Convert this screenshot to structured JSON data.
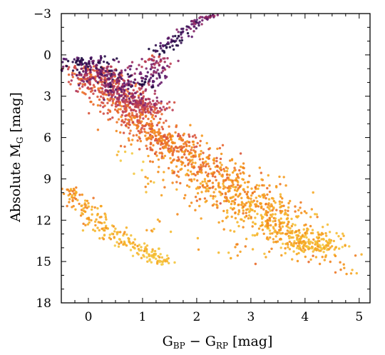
{
  "chart_data": {
    "type": "scatter",
    "title": "",
    "xlabel": {
      "main": "G",
      "sub1": "BP",
      "mid": " − G",
      "sub2": "RP",
      "unit": " [mag]"
    },
    "ylabel": {
      "main": "Absolute M",
      "sub": "G",
      "unit": " [mag]"
    },
    "xlim": [
      -0.5,
      5.2
    ],
    "ylim": [
      18,
      -3
    ],
    "y_inverted": true,
    "grid": false,
    "legend": "none",
    "xticks": [
      0,
      1,
      2,
      3,
      4,
      5
    ],
    "xticklabels": [
      "0",
      "1",
      "2",
      "3",
      "4",
      "5"
    ],
    "yticks": [
      -3,
      0,
      3,
      6,
      9,
      12,
      15,
      18
    ],
    "yticklabels": [
      "−3",
      "0",
      "3",
      "6",
      "9",
      "12",
      "15",
      "18"
    ],
    "x_minor_step": 0.25,
    "y_minor_step": 1,
    "colormap": [
      "#1a0b3d",
      "#5b1a6e",
      "#8e2867",
      "#c33f52",
      "#e8642d",
      "#f5911a",
      "#f6b42a",
      "#f3cb45"
    ],
    "series": [
      {
        "kind": "main_sequence",
        "color_range": [
          0.45,
          0.88
        ],
        "points": [
          [
            -0.05,
            0.8
          ],
          [
            0.2,
            1.8
          ],
          [
            0.5,
            3.0
          ],
          [
            0.8,
            4.5
          ],
          [
            1.2,
            5.8
          ],
          [
            1.6,
            6.7
          ],
          [
            2.0,
            7.8
          ],
          [
            2.4,
            9.0
          ],
          [
            2.8,
            10.2
          ],
          [
            3.2,
            11.4
          ],
          [
            3.6,
            12.6
          ],
          [
            4.0,
            13.6
          ],
          [
            4.3,
            14.2
          ]
        ],
        "width": [
          0.7,
          0.9,
          0.9,
          0.8,
          0.8,
          0.9,
          1.1,
          1.3,
          1.4,
          1.3,
          1.1,
          0.9,
          0.8
        ]
      },
      {
        "kind": "turnoff_subgiants",
        "color_range": [
          0.05,
          0.45
        ],
        "points": [
          [
            -0.15,
            0.2
          ],
          [
            0.1,
            0.9
          ],
          [
            0.4,
            1.8
          ],
          [
            0.7,
            2.8
          ],
          [
            1.0,
            3.6
          ],
          [
            1.2,
            4.2
          ]
        ],
        "width": [
          0.7,
          0.8,
          0.8,
          0.7,
          0.6,
          0.5
        ]
      },
      {
        "kind": "red_clump",
        "color_range": [
          0.0,
          0.5
        ],
        "points": [
          [
            1.0,
            2.4
          ],
          [
            1.1,
            1.5
          ],
          [
            1.2,
            0.6
          ],
          [
            1.3,
            0.0
          ]
        ],
        "width": [
          0.5,
          0.5,
          0.5,
          0.4
        ]
      },
      {
        "kind": "giant_branch",
        "color_range": [
          0.0,
          0.3
        ],
        "points": [
          [
            1.3,
            -0.1
          ],
          [
            1.6,
            -1.2
          ],
          [
            1.9,
            -2.0
          ],
          [
            2.1,
            -2.6
          ],
          [
            2.3,
            -2.9
          ]
        ],
        "width": [
          0.3,
          0.3,
          0.3,
          0.2,
          0.2
        ]
      },
      {
        "kind": "white_dwarfs",
        "color_range": [
          0.72,
          0.95
        ],
        "points": [
          [
            -0.4,
            9.6
          ],
          [
            -0.1,
            11.0
          ],
          [
            0.3,
            12.5
          ],
          [
            0.7,
            13.6
          ],
          [
            1.1,
            14.5
          ],
          [
            1.5,
            15.2
          ]
        ],
        "width": [
          0.3,
          0.4,
          0.45,
          0.45,
          0.4,
          0.35
        ]
      },
      {
        "kind": "field_scatter",
        "color_range": [
          0.6,
          0.95
        ],
        "points": [
          [
            1.5,
            8.5
          ],
          [
            2.2,
            11.0
          ],
          [
            3.0,
            14.0
          ],
          [
            3.8,
            15.0
          ],
          [
            4.5,
            14.5
          ],
          [
            4.8,
            16.0
          ],
          [
            1.0,
            12.0
          ],
          [
            2.6,
            14.8
          ],
          [
            3.4,
            13.0
          ],
          [
            4.1,
            12.8
          ],
          [
            0.6,
            7.0
          ],
          [
            1.2,
            10.0
          ]
        ],
        "width": [
          0.7,
          0.7,
          0.7,
          0.8,
          0.7,
          0.8,
          0.8,
          0.8,
          0.8,
          0.8,
          0.6,
          0.8
        ]
      }
    ]
  }
}
